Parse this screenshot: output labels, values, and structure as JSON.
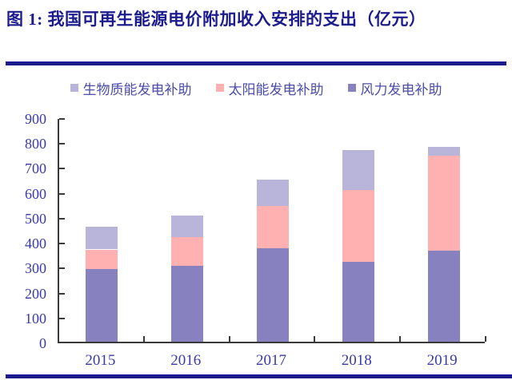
{
  "title": "图 1: 我国可再生能源电价附加收入安排的支出（亿元）",
  "colors": {
    "navy_accent": "#1b1b8e",
    "axis_line": "#3a3a3a",
    "tick_label_blue": "#3a3aa6",
    "legend_text": "#4c4caa",
    "wind_purple": "#8781bf",
    "solar_pink": "#ffb1b1",
    "biomass_lavender": "#b9b4d9"
  },
  "legend": {
    "items": [
      {
        "label": "生物质能发电补助",
        "color": "#b9b4d9"
      },
      {
        "label": "太阳能发电补助",
        "color": "#ffb1b1"
      },
      {
        "label": "风力发电补助",
        "color": "#8781bf"
      }
    ]
  },
  "chart_data": {
    "type": "bar",
    "stacked": true,
    "title": "我国可再生能源电价附加收入安排的支出（亿元）",
    "categories": [
      "2015",
      "2016",
      "2017",
      "2018",
      "2019"
    ],
    "series": [
      {
        "name": "风力发电补助",
        "color": "#8781bf",
        "values": [
          290,
          305,
          375,
          320,
          365
        ]
      },
      {
        "name": "太阳能发电补助",
        "color": "#ffb1b1",
        "values": [
          80,
          115,
          170,
          290,
          380
        ]
      },
      {
        "name": "生物质能发电补助",
        "color": "#b9b4d9",
        "values": [
          90,
          85,
          105,
          160,
          35
        ]
      }
    ],
    "totals": [
      460,
      505,
      650,
      770,
      780
    ],
    "xlabel": "",
    "ylabel": "",
    "ylim": [
      0,
      900
    ],
    "yticks": [
      0,
      100,
      200,
      300,
      400,
      500,
      600,
      700,
      800,
      900
    ],
    "grid": false,
    "legend_position": "top"
  }
}
